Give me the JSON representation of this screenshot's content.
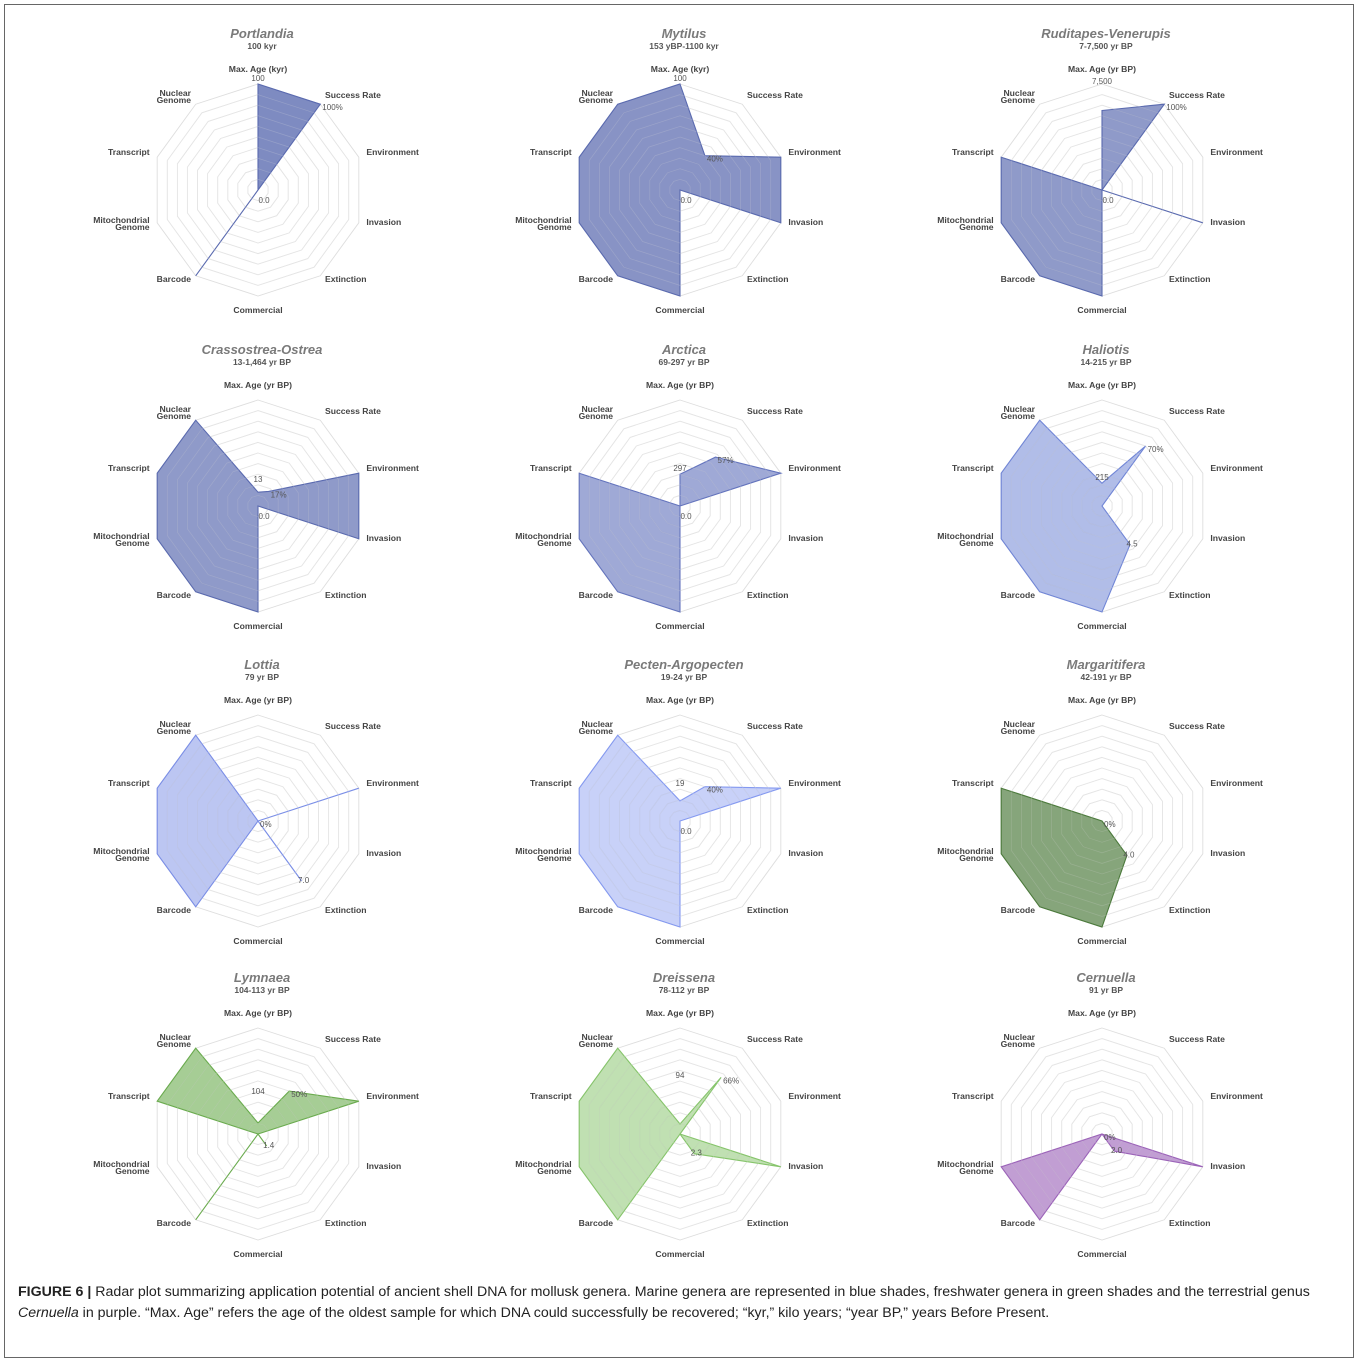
{
  "figure": {
    "label": "FIGURE 6 |",
    "caption_parts": [
      {
        "text": "Radar plot summarizing application potential of ancient shell DNA for mollusk genera. Marine genera are represented in blue shades, freshwater genera in green shades and the terrestrial genus ",
        "italic": false
      },
      {
        "text": "Cernuella",
        "italic": true
      },
      {
        "text": " in purple. “Max. Age” refers the age of the oldest sample for which DNA could successfully be recovered; “kyr,” kilo years; “year BP,” years Before Present.",
        "italic": false
      }
    ]
  },
  "chart_data": [
    {
      "type": "radar",
      "title": "Portlandia",
      "subtitle": "100 kyr",
      "axes": [
        "Max. Age (kyr)",
        "Success Rate",
        "Environment",
        "Invasion",
        "Extinction",
        "Commercial",
        "Barcode",
        "Mitochondrial Genome",
        "Transcript",
        "Nuclear Genome"
      ],
      "values": [
        1,
        1,
        0,
        0,
        0,
        0,
        1,
        0,
        0,
        0
      ],
      "annotations": [
        {
          "axis": 0,
          "r": 1.0,
          "text": "100"
        },
        {
          "axis": 1,
          "r": 1.0,
          "text": "100%"
        },
        {
          "axis": 0,
          "r": 0,
          "text": "0.0"
        }
      ],
      "color": "#5a6aaf",
      "fill_opacity": 0.78,
      "grid_levels": 10
    },
    {
      "type": "radar",
      "title": "Mytilus",
      "subtitle": "153 yBP-1100 kyr",
      "axes": [
        "Max. Age (kyr)",
        "Success Rate",
        "Environment",
        "Invasion",
        "Extinction",
        "Commercial",
        "Barcode",
        "Mitochondrial Genome",
        "Transcript",
        "Nuclear Genome"
      ],
      "values": [
        1,
        0.4,
        1,
        1,
        0,
        1,
        1,
        1,
        1,
        1
      ],
      "annotations": [
        {
          "axis": 0,
          "r": 1.0,
          "text": "100"
        },
        {
          "axis": 1,
          "r": 0.4,
          "text": "40%"
        },
        {
          "axis": 0,
          "r": 0,
          "text": "0.0"
        }
      ],
      "color": "#5a6aaf",
      "fill_opacity": 0.72,
      "grid_levels": 10
    },
    {
      "type": "radar",
      "title": "Ruditapes-Venerupis",
      "subtitle": "7-7,500 yr BP",
      "axes": [
        "Max. Age (yr BP)",
        "Success Rate",
        "Environment",
        "Invasion",
        "Extinction",
        "Commercial",
        "Barcode",
        "Mitochondrial Genome",
        "Transcript",
        "Nuclear Genome"
      ],
      "values": [
        0.75,
        1,
        0,
        1,
        0,
        1,
        1,
        1,
        1,
        0
      ],
      "annotations": [
        {
          "axis": 0,
          "r": 0.97,
          "text": "7,500"
        },
        {
          "axis": 1,
          "r": 1.0,
          "text": "100%"
        },
        {
          "axis": 0,
          "r": 0,
          "text": "0.0"
        }
      ],
      "color": "#5a6aaf",
      "fill_opacity": 0.68,
      "grid_levels": 10
    },
    {
      "type": "radar",
      "title": "Crassostrea-Ostrea",
      "subtitle": "13-1,464 yr  BP",
      "axes": [
        "Max. Age (yr BP)",
        "Success Rate",
        "Environment",
        "Invasion",
        "Extinction",
        "Commercial",
        "Barcode",
        "Mitochondrial Genome",
        "Transcript",
        "Nuclear Genome"
      ],
      "values": [
        0.13,
        0.17,
        1,
        1,
        0,
        1,
        1,
        1,
        1,
        1
      ],
      "annotations": [
        {
          "axis": 0,
          "r": 0.2,
          "text": "13"
        },
        {
          "axis": 1,
          "r": 0.17,
          "text": "17%"
        },
        {
          "axis": 0,
          "r": 0,
          "text": "0.0"
        }
      ],
      "color": "#5a6aaf",
      "fill_opacity": 0.68,
      "grid_levels": 10
    },
    {
      "type": "radar",
      "title": "Arctica",
      "subtitle": "69-297 yr BP",
      "axes": [
        "Max. Age (yr BP)",
        "Success Rate",
        "Environment",
        "Invasion",
        "Extinction",
        "Commercial",
        "Barcode",
        "Mitochondrial Genome",
        "Transcript",
        "Nuclear Genome"
      ],
      "values": [
        0.3,
        0.57,
        1,
        0,
        0,
        1,
        1,
        1,
        1,
        0
      ],
      "annotations": [
        {
          "axis": 0,
          "r": 0.3,
          "text": "297"
        },
        {
          "axis": 1,
          "r": 0.57,
          "text": "57%"
        },
        {
          "axis": 0,
          "r": 0,
          "text": "0.0"
        }
      ],
      "color": "#6474bd",
      "fill_opacity": 0.62,
      "grid_levels": 10
    },
    {
      "type": "radar",
      "title": "Haliotis",
      "subtitle": "14-215 yr BP",
      "axes": [
        "Max. Age (yr BP)",
        "Success Rate",
        "Environment",
        "Invasion",
        "Extinction",
        "Commercial",
        "Barcode",
        "Mitochondrial Genome",
        "Transcript",
        "Nuclear Genome"
      ],
      "values": [
        0.215,
        0.7,
        0,
        0,
        0.45,
        1,
        1,
        1,
        1,
        1
      ],
      "annotations": [
        {
          "axis": 0,
          "r": 0.215,
          "text": "215"
        },
        {
          "axis": 1,
          "r": 0.7,
          "text": "70%"
        },
        {
          "axis": 4,
          "r": 0.45,
          "text": "4.5"
        }
      ],
      "color": "#7186d6",
      "fill_opacity": 0.55,
      "grid_levels": 10
    },
    {
      "type": "radar",
      "title": "Lottia",
      "subtitle": "79 yr BP",
      "axes": [
        "Max. Age (yr BP)",
        "Success Rate",
        "Environment",
        "Invasion",
        "Extinction",
        "Commercial",
        "Barcode",
        "Mitochondrial Genome",
        "Transcript",
        "Nuclear Genome"
      ],
      "values": [
        0,
        0,
        1,
        0,
        0.7,
        0,
        1,
        1,
        1,
        1
      ],
      "annotations": [
        {
          "axis": 1,
          "r": 0.0,
          "text": "0%"
        },
        {
          "axis": 4,
          "r": 0.7,
          "text": "7.0"
        }
      ],
      "color": "#7a8ee6",
      "fill_opacity": 0.5,
      "grid_levels": 10
    },
    {
      "type": "radar",
      "title": "Pecten-Argopecten",
      "subtitle": "19-24 yr BP",
      "axes": [
        "Max. Age (yr BP)",
        "Success Rate",
        "Environment",
        "Invasion",
        "Extinction",
        "Commercial",
        "Barcode",
        "Mitochondrial Genome",
        "Transcript",
        "Nuclear Genome"
      ],
      "values": [
        0.19,
        0.4,
        1,
        0,
        0,
        1,
        1,
        1,
        1,
        1
      ],
      "annotations": [
        {
          "axis": 0,
          "r": 0.3,
          "text": "19"
        },
        {
          "axis": 1,
          "r": 0.4,
          "text": "40%"
        },
        {
          "axis": 0,
          "r": 0,
          "text": "0.0"
        }
      ],
      "color": "#8499f0",
      "fill_opacity": 0.45,
      "grid_levels": 10
    },
    {
      "type": "radar",
      "title": "Margaritifera",
      "subtitle": "42-191 yr BP",
      "axes": [
        "Max. Age (yr BP)",
        "Success Rate",
        "Environment",
        "Invasion",
        "Extinction",
        "Commercial",
        "Barcode",
        "Mitochondrial Genome",
        "Transcript",
        "Nuclear Genome"
      ],
      "values": [
        0,
        0,
        0,
        0,
        0.4,
        1,
        1,
        1,
        1,
        0
      ],
      "annotations": [
        {
          "axis": 1,
          "r": 0.0,
          "text": "0%"
        },
        {
          "axis": 4,
          "r": 0.4,
          "text": "4.0"
        }
      ],
      "color": "#4c7a3c",
      "fill_opacity": 0.68,
      "grid_levels": 10
    },
    {
      "type": "radar",
      "title": "Lymnaea",
      "subtitle": "104-113 yr BP",
      "axes": [
        "Max. Age (yr BP)",
        "Success Rate",
        "Environment",
        "Invasion",
        "Extinction",
        "Commercial",
        "Barcode",
        "Mitochondrial Genome",
        "Transcript",
        "Nuclear Genome"
      ],
      "values": [
        0.104,
        0.5,
        1,
        0,
        0.14,
        0,
        1,
        0,
        1,
        1
      ],
      "annotations": [
        {
          "axis": 0,
          "r": 0.35,
          "text": "104"
        },
        {
          "axis": 1,
          "r": 0.5,
          "text": "50%"
        },
        {
          "axis": 4,
          "r": 0.14,
          "text": "1.4"
        }
      ],
      "color": "#6aab4e",
      "fill_opacity": 0.6,
      "grid_levels": 10
    },
    {
      "type": "radar",
      "title": "Dreissena",
      "subtitle": "78-112 yr BP",
      "axes": [
        "Max. Age (yr BP)",
        "Success Rate",
        "Environment",
        "Invasion",
        "Extinction",
        "Commercial",
        "Barcode",
        "Mitochondrial Genome",
        "Transcript",
        "Nuclear Genome"
      ],
      "values": [
        0.094,
        0.66,
        0,
        1,
        0.23,
        0,
        1,
        1,
        1,
        1
      ],
      "annotations": [
        {
          "axis": 0,
          "r": 0.5,
          "text": "94"
        },
        {
          "axis": 1,
          "r": 0.66,
          "text": "66%"
        },
        {
          "axis": 4,
          "r": 0.23,
          "text": "2.3"
        }
      ],
      "color": "#86c46b",
      "fill_opacity": 0.52,
      "grid_levels": 10
    },
    {
      "type": "radar",
      "title": "Cernuella",
      "subtitle": "91 yr BP",
      "axes": [
        "Max. Age (yr BP)",
        "Success Rate",
        "Environment",
        "Invasion",
        "Extinction",
        "Commercial",
        "Barcode",
        "Mitochondrial Genome",
        "Transcript",
        "Nuclear Genome"
      ],
      "values": [
        0,
        0,
        0,
        1,
        0.2,
        0,
        1,
        1,
        0,
        0
      ],
      "annotations": [
        {
          "axis": 1,
          "r": 0.0,
          "text": "0%"
        },
        {
          "axis": 4,
          "r": 0.2,
          "text": "2.0"
        }
      ],
      "color": "#9b63b8",
      "fill_opacity": 0.62,
      "grid_levels": 10
    }
  ]
}
